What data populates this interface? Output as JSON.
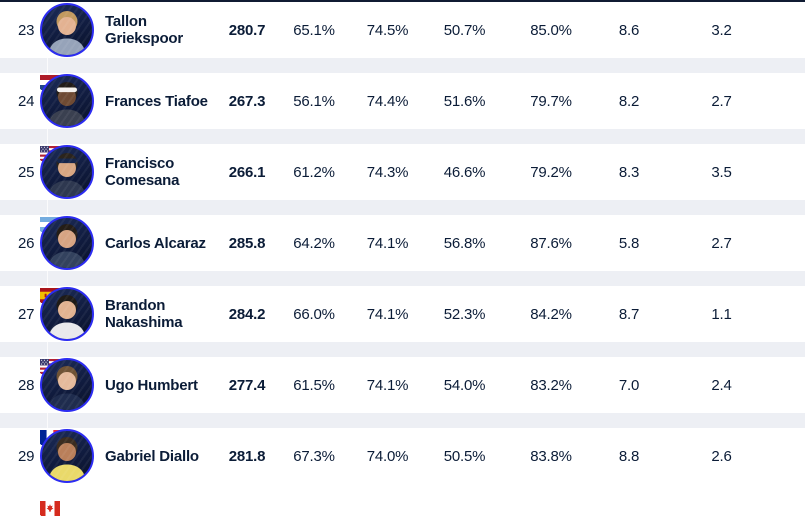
{
  "colors": {
    "accent_ring_blue": "#2c2cf2",
    "row_background": "#ffffff",
    "separator_background": "#edeff4",
    "top_border": "#101b33",
    "text_navy": "#0b1c37"
  },
  "table": {
    "rows": [
      {
        "rank": "23",
        "name": "Tallon Griekspoor",
        "country": "Netherlands",
        "flag": "nl",
        "avatar": {
          "skin": "#e3b292",
          "hair": "#c2995f",
          "shirt": "#96a3b9",
          "band": ""
        },
        "stats": [
          "280.7",
          "65.1%",
          "74.5%",
          "50.7%",
          "85.0%",
          "8.6",
          "3.2"
        ]
      },
      {
        "rank": "24",
        "name": "Frances Tiafoe",
        "country": "United States",
        "flag": "us",
        "avatar": {
          "skin": "#6e4a33",
          "hair": "#221c17",
          "shirt": "#3a4050",
          "band": "#f5f2ee"
        },
        "stats": [
          "267.3",
          "56.1%",
          "74.4%",
          "51.6%",
          "79.7%",
          "8.2",
          "2.7"
        ]
      },
      {
        "rank": "25",
        "name": "Francisco Comesana",
        "country": "Argentina",
        "flag": "ar",
        "avatar": {
          "skin": "#d8a682",
          "hair": "#2b241d",
          "shirt": "#2e3850",
          "band": "#16264c"
        },
        "stats": [
          "266.1",
          "61.2%",
          "74.3%",
          "46.6%",
          "79.2%",
          "8.3",
          "3.5"
        ]
      },
      {
        "rank": "26",
        "name": "Carlos Alcaraz",
        "country": "Spain",
        "flag": "es",
        "avatar": {
          "skin": "#d7a483",
          "hair": "#241d17",
          "shirt": "#33425e",
          "band": ""
        },
        "stats": [
          "285.8",
          "64.2%",
          "74.1%",
          "56.8%",
          "87.6%",
          "5.8",
          "2.7"
        ]
      },
      {
        "rank": "27",
        "name": "Brandon Nakashima",
        "country": "United States",
        "flag": "us",
        "avatar": {
          "skin": "#e2b391",
          "hair": "#1f1b17",
          "shirt": "#e9e9ec",
          "band": ""
        },
        "stats": [
          "284.2",
          "66.0%",
          "74.1%",
          "52.3%",
          "84.2%",
          "8.7",
          "1.1"
        ]
      },
      {
        "rank": "28",
        "name": "Ugo Humbert",
        "country": "France",
        "flag": "fr",
        "avatar": {
          "skin": "#e5ba9c",
          "hair": "#6f5335",
          "shirt": "#1f2c4e",
          "band": ""
        },
        "stats": [
          "277.4",
          "61.5%",
          "74.1%",
          "54.0%",
          "83.2%",
          "7.0",
          "2.4"
        ]
      },
      {
        "rank": "29",
        "name": "Gabriel Diallo",
        "country": "Canada",
        "flag": "ca",
        "avatar": {
          "skin": "#b97f5a",
          "hair": "#3a2c20",
          "shirt": "#e9d96a",
          "band": ""
        },
        "stats": [
          "281.8",
          "67.3%",
          "74.0%",
          "50.5%",
          "83.8%",
          "8.8",
          "2.6"
        ]
      }
    ]
  }
}
